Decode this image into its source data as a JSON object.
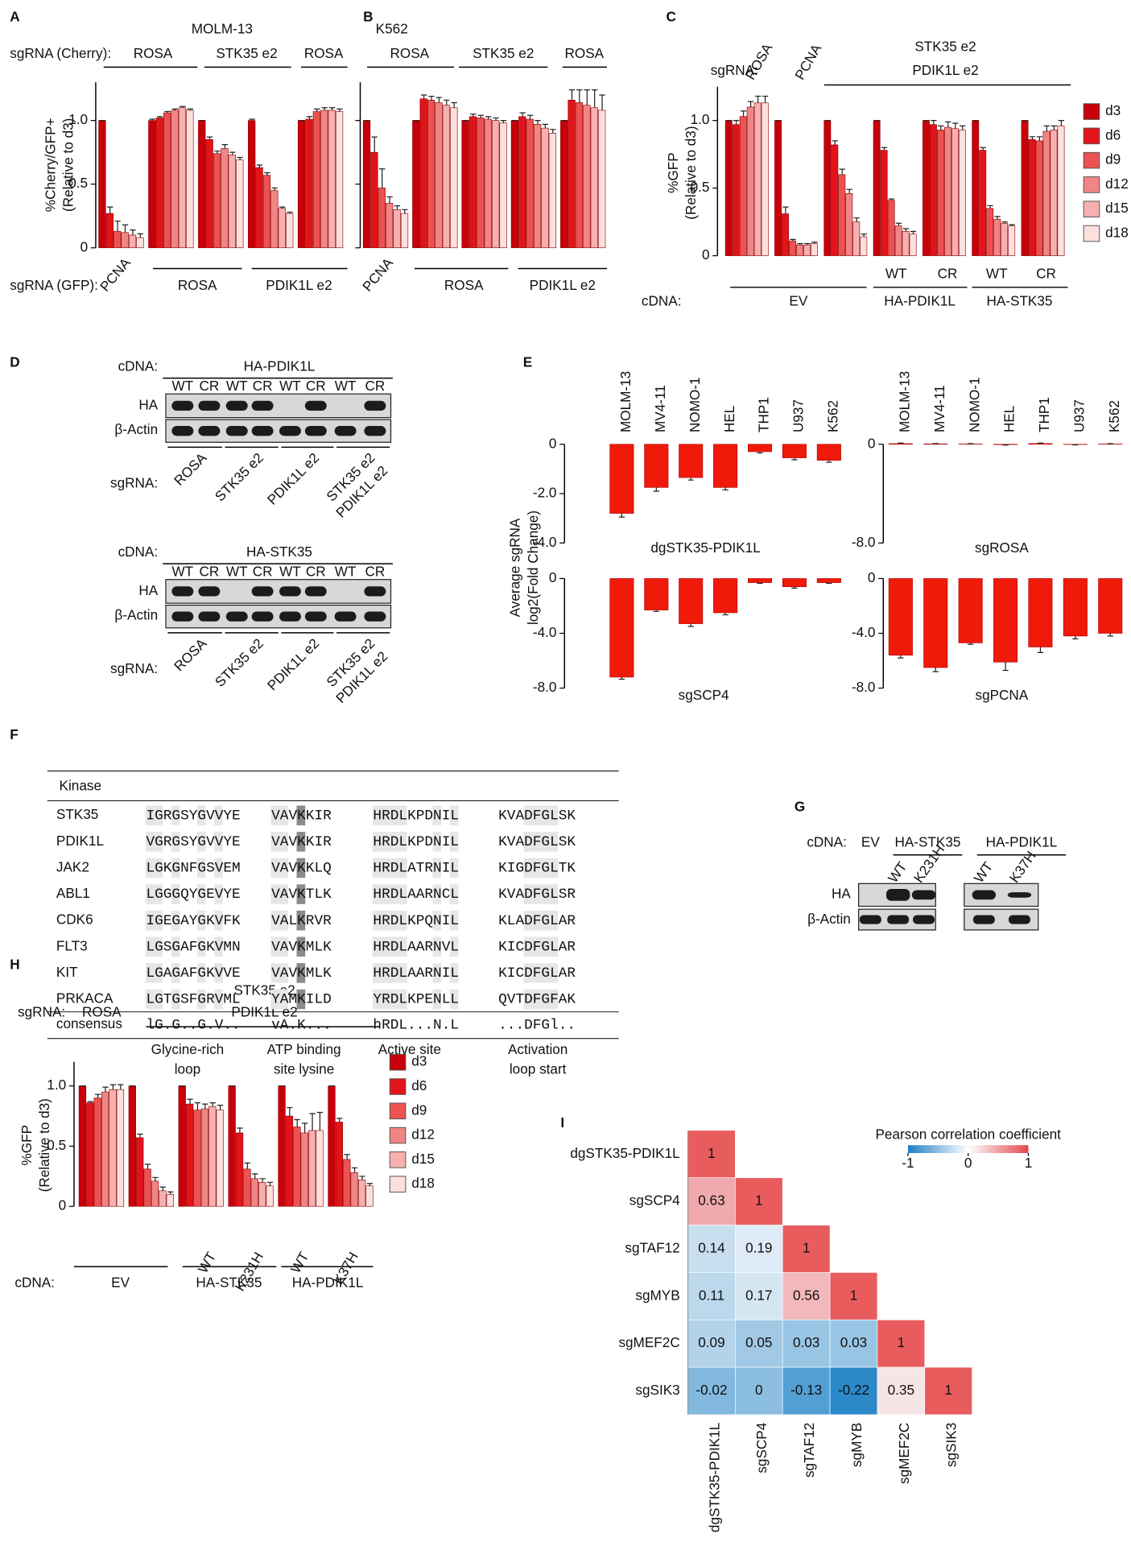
{
  "chart_data": [
    {
      "type": "bar",
      "panel": "A",
      "title": "MOLM-13",
      "ylabel": [
        "%Cherry/GFP+",
        "(Relative to d3)"
      ],
      "ylim": [
        0,
        1.3
      ],
      "yticks": [
        0,
        0.5,
        {
          "value": 1,
          "label": "1.0"
        }
      ],
      "sgrna_top": {
        "label": "sgRNA (Cherry):",
        "groups": [
          "ROSA",
          "STK35 e2",
          "ROSA"
        ]
      },
      "sgrna_bottom": {
        "label": "sgRNA (GFP):",
        "groups": [
          "PCNA",
          "ROSA",
          "PDIK1L e2"
        ]
      },
      "series": [
        {
          "color": "#c8000a",
          "values": [
            1,
            1,
            1,
            1,
            1
          ],
          "errors": [
            0,
            0.01,
            0,
            0.01,
            0
          ]
        },
        {
          "color": "#e2141a",
          "values": [
            0.27,
            1.02,
            0.85,
            0.63,
            1.01
          ],
          "errors": [
            0.05,
            0.01,
            0.02,
            0.02,
            0.02
          ]
        },
        {
          "color": "#ec5252",
          "values": [
            0.13,
            1.06,
            0.74,
            0.57,
            1.07
          ],
          "errors": [
            0.08,
            0.01,
            0.02,
            0.02,
            0.02
          ]
        },
        {
          "color": "#f08585",
          "values": [
            0.12,
            1.08,
            0.78,
            0.45,
            1.08
          ],
          "errors": [
            0.06,
            0.01,
            0.03,
            0.02,
            0.02
          ]
        },
        {
          "color": "#f6b0b0",
          "values": [
            0.1,
            1.1,
            0.73,
            0.31,
            1.08
          ],
          "errors": [
            0.04,
            0.01,
            0.02,
            0.01,
            0.02
          ]
        },
        {
          "color": "#fbe0dd",
          "values": [
            0.08,
            1.08,
            0.69,
            0.27,
            1.07
          ],
          "errors": [
            0.03,
            0.01,
            0.02,
            0.01,
            0.02
          ]
        }
      ]
    },
    {
      "type": "bar",
      "panel": "B",
      "title": "K562",
      "ylim": [
        0,
        1.3
      ],
      "yticks": [
        0,
        0.5,
        {
          "value": 1,
          "label": "1.0"
        }
      ],
      "sgrna_top": {
        "groups": [
          "ROSA",
          "STK35 e2",
          "ROSA"
        ]
      },
      "sgrna_bottom": {
        "groups": [
          "PCNA",
          "ROSA",
          "PDIK1L e2"
        ]
      },
      "series": [
        {
          "color": "#c8000a",
          "values": [
            1,
            1,
            1,
            1,
            1
          ],
          "errors": [
            0,
            0,
            0,
            0,
            0
          ]
        },
        {
          "color": "#e2141a",
          "values": [
            0.75,
            1.17,
            1.03,
            1.03,
            1.16
          ],
          "errors": [
            0.12,
            0.03,
            0.02,
            0.03,
            0.08
          ]
        },
        {
          "color": "#ec5252",
          "values": [
            0.47,
            1.16,
            1.02,
            1.01,
            1.14
          ],
          "errors": [
            0.15,
            0.03,
            0.02,
            0.03,
            0.1
          ]
        },
        {
          "color": "#f08585",
          "values": [
            0.35,
            1.14,
            1.01,
            0.97,
            1.12
          ],
          "errors": [
            0.05,
            0.04,
            0.02,
            0.03,
            0.12
          ]
        },
        {
          "color": "#f6b0b0",
          "values": [
            0.3,
            1.12,
            1,
            0.94,
            1.1
          ],
          "errors": [
            0.03,
            0.04,
            0.02,
            0.03,
            0.14
          ]
        },
        {
          "color": "#fbe0dd",
          "values": [
            0.27,
            1.1,
            0.98,
            0.9,
            1.08
          ],
          "errors": [
            0.03,
            0.04,
            0.02,
            0.03,
            0.12
          ]
        }
      ]
    },
    {
      "type": "bar",
      "panel": "C",
      "ylabel": [
        "%GFP",
        "(Relative to d3)"
      ],
      "ylim": [
        0,
        1.25
      ],
      "yticks": [
        0,
        0.5,
        {
          "value": 1,
          "label": "1.0"
        }
      ],
      "sgrna_top": {
        "label": "sgRNA:",
        "groups": [
          "ROSA",
          "PCNA",
          "STK35 e2",
          "PDIK1L e2"
        ]
      },
      "cdna": {
        "label": "cDNA:",
        "groups": [
          "EV",
          "HA-PDIK1L",
          "HA-STK35"
        ],
        "variants": [
          "WT",
          "CR",
          "WT",
          "CR"
        ]
      },
      "series": [
        {
          "name": "d3",
          "color": "#c8000a",
          "values": [
            1,
            1,
            1,
            1,
            1,
            1,
            1
          ],
          "errors": [
            0,
            0,
            0,
            0,
            0,
            0,
            0
          ]
        },
        {
          "name": "d6",
          "color": "#e2141a",
          "values": [
            0.97,
            0.31,
            0.82,
            0.78,
            0.97,
            0.78,
            0.86
          ],
          "errors": [
            0.03,
            0.05,
            0.03,
            0.02,
            0.03,
            0.02,
            0.02
          ]
        },
        {
          "name": "d9",
          "color": "#ec5252",
          "values": [
            1.03,
            0.11,
            0.6,
            0.41,
            0.93,
            0.35,
            0.85
          ],
          "errors": [
            0.04,
            0.01,
            0.04,
            0.01,
            0.03,
            0.02,
            0.03
          ]
        },
        {
          "name": "d12",
          "color": "#f08585",
          "values": [
            1.1,
            0.08,
            0.46,
            0.22,
            0.95,
            0.27,
            0.92
          ],
          "errors": [
            0.04,
            0.01,
            0.03,
            0.02,
            0.04,
            0.02,
            0.04
          ]
        },
        {
          "name": "d15",
          "color": "#f6b0b0",
          "values": [
            1.13,
            0.08,
            0.25,
            0.18,
            0.94,
            0.24,
            0.93
          ],
          "errors": [
            0.05,
            0.01,
            0.03,
            0.02,
            0.04,
            0.01,
            0.03
          ]
        },
        {
          "name": "d18",
          "color": "#fbe0dd",
          "values": [
            1.13,
            0.09,
            0.14,
            0.16,
            0.93,
            0.22,
            0.96
          ],
          "errors": [
            0.05,
            0.01,
            0.02,
            0.02,
            0.03,
            0.01,
            0.04
          ]
        }
      ]
    },
    {
      "type": "bar",
      "panel": "E",
      "title": "dgSTK35-PDIK1L",
      "ylabel": [
        "Average sgRNA",
        "log2(Fold Change)"
      ],
      "color": "#f01a0a",
      "categories": [
        "MOLM-13",
        "MV4-11",
        "NOMO-1",
        "HEL",
        "THP1",
        "U937",
        "K562"
      ],
      "values": [
        -2.8,
        -1.75,
        -1.35,
        -1.75,
        -0.3,
        -0.55,
        -0.65
      ],
      "errors": [
        0.15,
        0.15,
        0.1,
        0.1,
        0.05,
        0.08,
        0.08
      ],
      "ylim": [
        -4,
        0
      ],
      "yticks": [
        0,
        {
          "value": -2,
          "label": "-2.0"
        },
        {
          "value": -4,
          "label": "-4.0"
        }
      ]
    },
    {
      "type": "bar",
      "title": "sgROSA",
      "color": "#f01a0a",
      "categories": [
        "MOLM-13",
        "MV4-11",
        "NOMO-1",
        "HEL",
        "THP1",
        "U937",
        "K562"
      ],
      "values": [
        0.05,
        0.03,
        0.02,
        -0.03,
        0.06,
        -0.02,
        0.02
      ],
      "errors": [
        0.05,
        0.03,
        0.03,
        0.04,
        0.04,
        0.03,
        0.03
      ],
      "ylim": [
        -8,
        0
      ],
      "yticks": [
        0,
        {
          "value": -8,
          "label": "-8.0"
        }
      ]
    },
    {
      "type": "bar",
      "title": "sgSCP4",
      "color": "#f01a0a",
      "values": [
        -7.2,
        -2.3,
        -3.3,
        -2.5,
        -0.3,
        -0.6,
        -0.3
      ],
      "errors": [
        0.15,
        0.1,
        0.2,
        0.15,
        0.05,
        0.1,
        0.05
      ],
      "ylim": [
        -8,
        0
      ],
      "yticks": [
        0,
        {
          "value": -4,
          "label": "-4.0"
        },
        {
          "value": -8,
          "label": "-8.0"
        }
      ]
    },
    {
      "type": "bar",
      "title": "sgPCNA",
      "color": "#f01a0a",
      "values": [
        -5.6,
        -6.5,
        -4.7,
        -6.1,
        -5,
        -4.2,
        -4
      ],
      "errors": [
        0.2,
        0.3,
        0.1,
        0.6,
        0.4,
        0.2,
        0.2
      ],
      "ylim": [
        -8,
        0
      ],
      "yticks": [
        0,
        {
          "value": -4,
          "label": "-4.0"
        },
        {
          "value": -8,
          "label": "-8.0"
        }
      ]
    },
    {
      "type": "bar",
      "panel": "H",
      "ylabel": [
        "%GFP",
        "(Relative to d3)"
      ],
      "ylim": [
        0,
        1.2
      ],
      "yticks": [
        0,
        0.5,
        {
          "value": 1,
          "label": "1.0"
        }
      ],
      "sgrna_top": {
        "label": "sgRNA:",
        "groups": [
          "ROSA",
          "STK35 e2",
          "PDIK1L e2"
        ]
      },
      "cdna": {
        "label": "cDNA:",
        "groups": [
          "EV",
          "HA-STK35",
          "HA-PDIK1L"
        ],
        "variants": [
          "WT",
          "K231H",
          "WT",
          "K37H"
        ]
      },
      "series": [
        {
          "name": "d3",
          "color": "#c8000a",
          "values": [
            1,
            1,
            1,
            1,
            1,
            1
          ],
          "errors": [
            0,
            0,
            0,
            0,
            0,
            0
          ]
        },
        {
          "name": "d6",
          "color": "#e2141a",
          "values": [
            0.86,
            0.57,
            0.85,
            0.61,
            0.75,
            0.7
          ],
          "errors": [
            0.01,
            0.03,
            0.04,
            0.04,
            0.07,
            0.03
          ]
        },
        {
          "name": "d9",
          "color": "#ec5252",
          "values": [
            0.9,
            0.31,
            0.8,
            0.31,
            0.66,
            0.39
          ],
          "errors": [
            0.03,
            0.04,
            0.06,
            0.05,
            0.06,
            0.04
          ]
        },
        {
          "name": "d12",
          "color": "#f08585",
          "values": [
            0.95,
            0.21,
            0.81,
            0.23,
            0.61,
            0.28
          ],
          "errors": [
            0.04,
            0.03,
            0.04,
            0.04,
            0.08,
            0.04
          ]
        },
        {
          "name": "d15",
          "color": "#f6b0b0",
          "values": [
            0.97,
            0.13,
            0.83,
            0.2,
            0.63,
            0.22
          ],
          "errors": [
            0.04,
            0.03,
            0.03,
            0.03,
            0.14,
            0.03
          ]
        },
        {
          "name": "d18",
          "color": "#fbe0dd",
          "values": [
            0.97,
            0.1,
            0.8,
            0.17,
            0.63,
            0.17
          ],
          "errors": [
            0.04,
            0.02,
            0.04,
            0.03,
            0.15,
            0.02
          ]
        }
      ]
    },
    {
      "type": "heatmap",
      "panel": "I",
      "rows": [
        "dgSTK35-PDIK1L",
        "sgSCP4",
        "sgTAF12",
        "sgMYB",
        "sgMEF2C",
        "sgSIK3"
      ],
      "columns": [
        "dgSTK35-PDIK1L",
        "sgSCP4",
        "sgTAF12",
        "sgMYB",
        "sgMEF2C",
        "sgSIK3"
      ],
      "values": [
        [
          1
        ],
        [
          0.63,
          1
        ],
        [
          0.14,
          0.19,
          1
        ],
        [
          0.11,
          0.17,
          0.56,
          1
        ],
        [
          0.09,
          0.05,
          0.03,
          0.03,
          1
        ],
        [
          -0.02,
          0,
          -0.13,
          -0.22,
          0.35,
          1
        ]
      ],
      "colorbar": {
        "title": "Pearson correlation coefficient",
        "lim": [
          -1,
          1
        ],
        "ticks": [
          -1,
          0,
          1
        ]
      }
    }
  ],
  "blots": {
    "panel": "D",
    "panels": [
      {
        "cdna_label": "cDNA:",
        "cdna": "HA-PDIK1L",
        "lanes": [
          "WT",
          "CR",
          "WT",
          "CR",
          "WT",
          "CR",
          "WT",
          "CR"
        ],
        "rows": [
          "HA",
          "β-Actin"
        ],
        "sgrna_label": "sgRNA:",
        "sgrna": [
          [
            "ROSA"
          ],
          [
            "STK35 e2"
          ],
          [
            "PDIK1L e2"
          ],
          [
            "STK35 e2",
            "PDIK1L e2"
          ]
        ]
      },
      {
        "cdna_label": "cDNA:",
        "cdna": "HA-STK35",
        "lanes": [
          "WT",
          "CR",
          "WT",
          "CR",
          "WT",
          "CR",
          "WT",
          "CR"
        ],
        "rows": [
          "HA",
          "β-Actin"
        ],
        "sgrna_label": "sgRNA:",
        "sgrna": [
          [
            "ROSA"
          ],
          [
            "STK35 e2"
          ],
          [
            "PDIK1L e2"
          ],
          [
            "STK35 e2",
            "PDIK1L e2"
          ]
        ]
      }
    ]
  },
  "alignment": {
    "panel": "F",
    "header": "Kinase",
    "rows": [
      [
        "STK35",
        "IGRGSYGVVYE",
        "VAVKKIR",
        "HRDLKPDNIL",
        "KVADFGLSK"
      ],
      [
        "PDIK1L",
        "VGRGSYGVVYE",
        "VAVKKIR",
        "HRDLKPDNIL",
        "KVADFGLSK"
      ],
      [
        "JAK2",
        "LGKGNFGSVEM",
        "VAVKKLQ",
        "HRDLATRNIL",
        "KIGDFGLTK"
      ],
      [
        "ABL1",
        "LGGGQYGEVYE",
        "VAVKTLK",
        "HRDLAARNCL",
        "KVADFGLSR"
      ],
      [
        "CDK6",
        "IGEGAYGKVFK",
        "VALKRVR",
        "HRDLKPQNIL",
        "KLADFGLAR"
      ],
      [
        "FLT3",
        "LGSGAFGKVMN",
        "VAVKMLK",
        "HRDLAARNVL",
        "KICDFGLAR"
      ],
      [
        "KIT",
        "LGAGAFGKVVE",
        "VAVKMLK",
        "HRDLAARNIL",
        "KICDFGLAR"
      ],
      [
        "PRKACA",
        "LGTGSFGRVML",
        "YAMKILD",
        "YRDLKPENLL",
        "QVTDFGFAK"
      ]
    ],
    "consensus": [
      "consensus",
      "lG.G..G.V..",
      "vA.K...",
      "hRDL...N.L",
      "...DFGl.."
    ],
    "footer": [
      [
        "Glycine-rich",
        "loop"
      ],
      [
        "ATP binding",
        "site lysine"
      ],
      [
        "Active site"
      ],
      [
        "Activation",
        "loop start"
      ]
    ]
  },
  "blot_g": {
    "panel": "G",
    "cdna_label": "cDNA:",
    "cdna": [
      "EV",
      "HA-STK35",
      "HA-PDIK1L"
    ],
    "lanes": [
      "WT",
      "K231H",
      "WT",
      "K37H"
    ],
    "rows": [
      "HA",
      "β-Actin"
    ]
  }
}
